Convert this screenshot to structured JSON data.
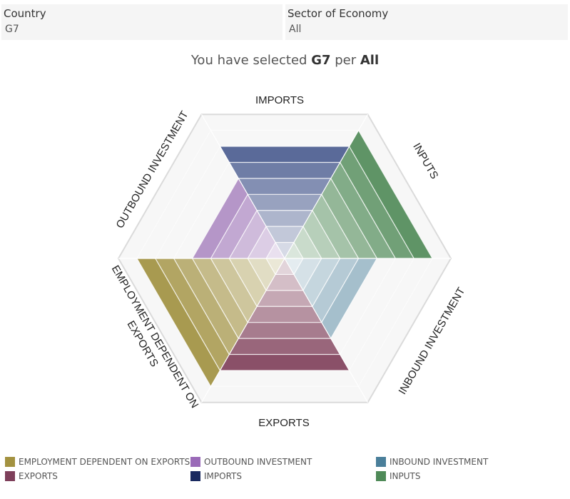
{
  "filters": {
    "country": {
      "label": "Country",
      "value": "G7"
    },
    "sector": {
      "label": "Sector of Economy",
      "value": "All"
    }
  },
  "selection": {
    "prefix": "You have selected",
    "country": "G7",
    "mid": "per",
    "sector": "All"
  },
  "chart_data": {
    "type": "radar",
    "axes": [
      "IMPORTS",
      "INPUTS",
      "INBOUND INVESTMENT",
      "EXPORTS",
      "EMPLOYMENT DEPENDENT ON EXPORTS",
      "OUTBOUND INVESTMENT"
    ],
    "rings": 9,
    "grid": true,
    "series": [
      {
        "name": "IMPORTS",
        "axis": "IMPORTS",
        "value": 7,
        "color": "#5a6a99"
      },
      {
        "name": "INPUTS",
        "axis": "INPUTS",
        "value": 8,
        "color": "#5f9466"
      },
      {
        "name": "INBOUND INVESTMENT",
        "axis": "INBOUND INVESTMENT",
        "value": 5,
        "color": "#a5bfcc"
      },
      {
        "name": "EXPORTS",
        "axis": "EXPORTS",
        "value": 7,
        "color": "#8a5068"
      },
      {
        "name": "EMPLOYMENT DEPENDENT ON EXPORTS",
        "axis": "EMPLOYMENT DEPENDENT ON EXPORTS",
        "value": 8,
        "color": "#a89a50"
      },
      {
        "name": "OUTBOUND INVESTMENT",
        "axis": "OUTBOUND INVESTMENT",
        "value": 5,
        "color": "#b596c8"
      }
    ],
    "legend_position": "bottom"
  },
  "legend": [
    {
      "label": "EMPLOYMENT DEPENDENT ON EXPORTS",
      "color": "#a39240"
    },
    {
      "label": "OUTBOUND INVESTMENT",
      "color": "#9a6ab8"
    },
    {
      "label": "INBOUND INVESTMENT",
      "color": "#4a7f9a"
    },
    {
      "label": "EXPORTS",
      "color": "#7e3f5a"
    },
    {
      "label": "IMPORTS",
      "color": "#1a2a60"
    },
    {
      "label": "INPUTS",
      "color": "#4f8a58"
    }
  ]
}
